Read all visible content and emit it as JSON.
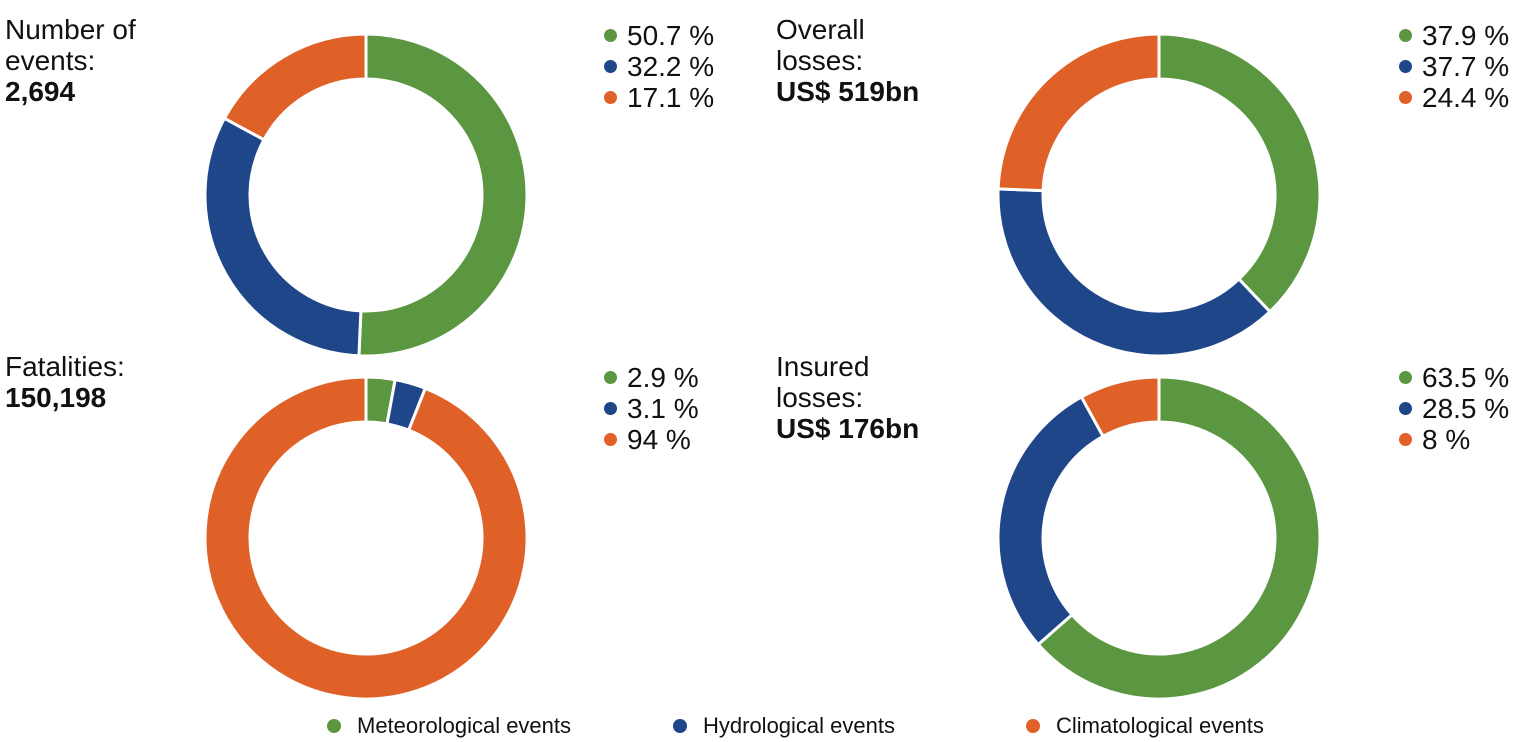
{
  "chart_data": [
    {
      "type": "pie",
      "title_lines": [
        "Number of",
        "events:"
      ],
      "total": "2,694",
      "categories": [
        "Meteorological events",
        "Hydrological events",
        "Climatological events"
      ],
      "values": [
        50.7,
        32.2,
        17.1
      ],
      "labels": [
        "50.7 %",
        "32.2 %",
        "17.1 %"
      ]
    },
    {
      "type": "pie",
      "title_lines": [
        "Overall",
        "losses:"
      ],
      "total": "US$ 519bn",
      "categories": [
        "Meteorological events",
        "Hydrological events",
        "Climatological events"
      ],
      "values": [
        37.9,
        37.7,
        24.4
      ],
      "labels": [
        "37.9 %",
        "37.7 %",
        "24.4 %"
      ]
    },
    {
      "type": "pie",
      "title_lines": [
        "Fatalities:"
      ],
      "total": "150,198",
      "categories": [
        "Meteorological events",
        "Hydrological events",
        "Climatological events"
      ],
      "values": [
        2.9,
        3.1,
        94
      ],
      "labels": [
        "2.9 %",
        "3.1 %",
        "94 %"
      ]
    },
    {
      "type": "pie",
      "title_lines": [
        "Insured",
        "losses:"
      ],
      "total": "US$ 176bn",
      "categories": [
        "Meteorological events",
        "Hydrological events",
        "Climatological events"
      ],
      "values": [
        63.5,
        28.5,
        8
      ],
      "labels": [
        "63.5 %",
        "28.5 %",
        "8 %"
      ]
    }
  ],
  "legend": [
    {
      "label": "Meteorological events",
      "color": "#5b9641"
    },
    {
      "label": "Hydrological events",
      "color": "#1f4689"
    },
    {
      "label": "Climatological events",
      "color": "#df6127"
    }
  ]
}
